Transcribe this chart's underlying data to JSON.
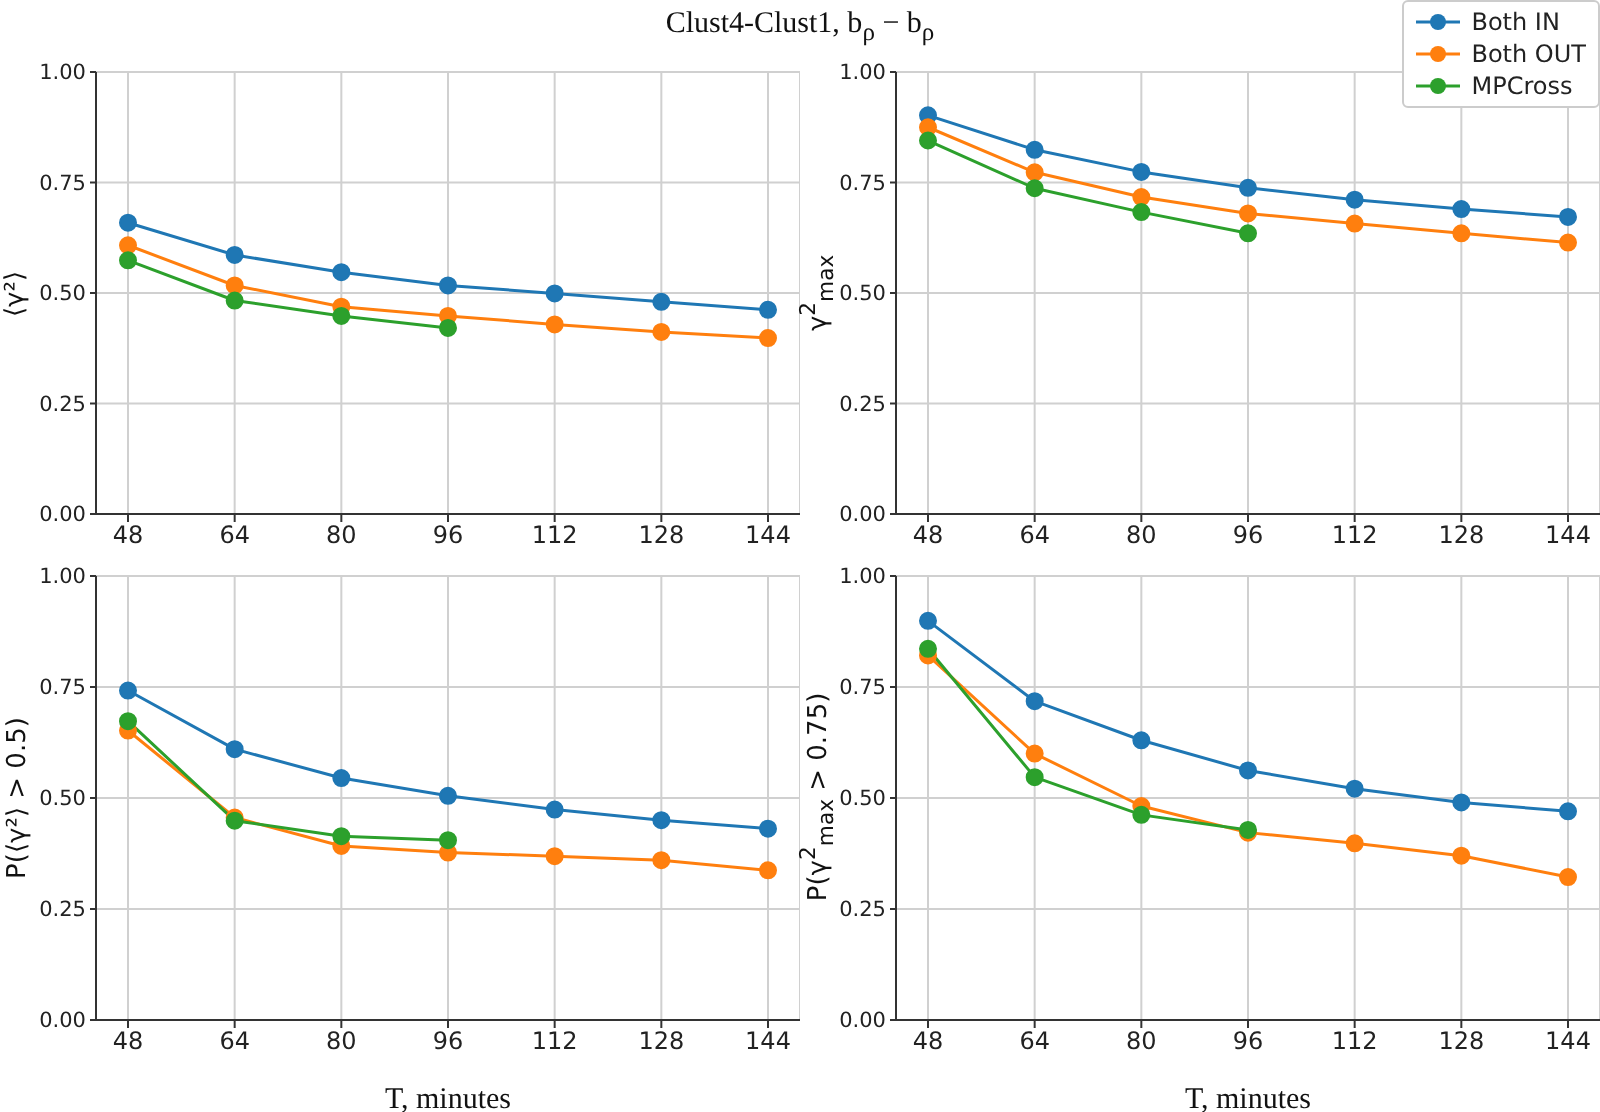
{
  "chart_data": [
    {
      "type": "line",
      "title": "Clust4-Clust1, b$_{ρ}$ − b$_{ρ}$",
      "ylabel": "⟨γ²⟩",
      "xlim": [
        43.2,
        148.8
      ],
      "xticks": [
        48,
        64,
        80,
        96,
        112,
        128,
        144
      ],
      "ylim": [
        0,
        1
      ],
      "yticks": [
        {
          "value": 0,
          "label": "0.00"
        },
        {
          "value": 0.25,
          "label": "0.25"
        },
        {
          "value": 0.5,
          "label": "0.50"
        },
        {
          "value": 0.75,
          "label": "0.75"
        },
        {
          "value": 1,
          "label": "1.00"
        }
      ],
      "grid": true,
      "marker": "circle",
      "line_style": "solid",
      "legend": false,
      "series": [
        {
          "color": "#1f77b4",
          "x": [
            48,
            64,
            80,
            96,
            112,
            128,
            144
          ],
          "values": [
            0.659,
            0.586,
            0.547,
            0.517,
            0.499,
            0.48,
            0.462
          ]
        },
        {
          "color": "#ff7f0e",
          "x": [
            48,
            64,
            80,
            96,
            112,
            128,
            144
          ],
          "values": [
            0.608,
            0.517,
            0.469,
            0.448,
            0.429,
            0.412,
            0.398
          ]
        },
        {
          "color": "#2ca02c",
          "x": [
            48,
            64,
            80,
            96
          ],
          "values": [
            0.574,
            0.483,
            0.448,
            0.421
          ]
        }
      ]
    },
    {
      "type": "line",
      "ylabel": "γ$^{2}$$_{max}$",
      "xlim": [
        43.2,
        148.8
      ],
      "xticks": [
        48,
        64,
        80,
        96,
        112,
        128,
        144
      ],
      "ylim": [
        0,
        1
      ],
      "yticks": [
        {
          "value": 0,
          "label": "0.00"
        },
        {
          "value": 0.25,
          "label": "0.25"
        },
        {
          "value": 0.5,
          "label": "0.50"
        },
        {
          "value": 0.75,
          "label": "0.75"
        },
        {
          "value": 1,
          "label": "1.00"
        }
      ],
      "grid": true,
      "marker": "circle",
      "line_style": "solid",
      "legend": "top right",
      "series": [
        {
          "name": "Both IN",
          "color": "#1f77b4",
          "x": [
            48,
            64,
            80,
            96,
            112,
            128,
            144
          ],
          "values": [
            0.902,
            0.824,
            0.774,
            0.738,
            0.711,
            0.69,
            0.672
          ]
        },
        {
          "name": "Both OUT",
          "color": "#ff7f0e",
          "x": [
            48,
            64,
            80,
            96,
            112,
            128,
            144
          ],
          "values": [
            0.875,
            0.773,
            0.717,
            0.68,
            0.657,
            0.635,
            0.614
          ]
        },
        {
          "name": "MPCross",
          "color": "#2ca02c",
          "x": [
            48,
            64,
            80,
            96
          ],
          "values": [
            0.845,
            0.737,
            0.683,
            0.635
          ]
        }
      ]
    },
    {
      "type": "line",
      "xlabel": "T, minutes",
      "ylabel": "P(⟨γ²⟩ > 0.5)",
      "xlim": [
        43.2,
        148.8
      ],
      "xticks": [
        48,
        64,
        80,
        96,
        112,
        128,
        144
      ],
      "ylim": [
        0,
        1
      ],
      "yticks": [
        {
          "value": 0,
          "label": "0.00"
        },
        {
          "value": 0.25,
          "label": "0.25"
        },
        {
          "value": 0.5,
          "label": "0.50"
        },
        {
          "value": 0.75,
          "label": "0.75"
        },
        {
          "value": 1,
          "label": "1.00"
        }
      ],
      "grid": true,
      "marker": "circle",
      "line_style": "solid",
      "legend": false,
      "series": [
        {
          "color": "#1f77b4",
          "x": [
            48,
            64,
            80,
            96,
            112,
            128,
            144
          ],
          "values": [
            0.742,
            0.61,
            0.545,
            0.505,
            0.474,
            0.45,
            0.431
          ]
        },
        {
          "color": "#ff7f0e",
          "x": [
            48,
            64,
            80,
            96,
            112,
            128,
            144
          ],
          "values": [
            0.652,
            0.456,
            0.392,
            0.377,
            0.369,
            0.36,
            0.337
          ]
        },
        {
          "color": "#2ca02c",
          "x": [
            48,
            64,
            80,
            96
          ],
          "values": [
            0.673,
            0.449,
            0.414,
            0.405
          ]
        }
      ]
    },
    {
      "type": "line",
      "xlabel": "T, minutes",
      "ylabel": "P(γ$^{2}$$_{max}$ > 0.75)",
      "xlim": [
        43.2,
        148.8
      ],
      "xticks": [
        48,
        64,
        80,
        96,
        112,
        128,
        144
      ],
      "ylim": [
        0,
        1
      ],
      "yticks": [
        {
          "value": 0,
          "label": "0.00"
        },
        {
          "value": 0.25,
          "label": "0.25"
        },
        {
          "value": 0.5,
          "label": "0.50"
        },
        {
          "value": 0.75,
          "label": "0.75"
        },
        {
          "value": 1,
          "label": "1.00"
        }
      ],
      "grid": true,
      "marker": "circle",
      "line_style": "solid",
      "legend": false,
      "series": [
        {
          "color": "#1f77b4",
          "x": [
            48,
            64,
            80,
            96,
            112,
            128,
            144
          ],
          "values": [
            0.899,
            0.718,
            0.63,
            0.562,
            0.521,
            0.49,
            0.47
          ]
        },
        {
          "color": "#ff7f0e",
          "x": [
            48,
            64,
            80,
            96,
            112,
            128,
            144
          ],
          "values": [
            0.821,
            0.6,
            0.482,
            0.422,
            0.398,
            0.37,
            0.322
          ]
        },
        {
          "color": "#2ca02c",
          "x": [
            48,
            64,
            80,
            96
          ],
          "values": [
            0.836,
            0.547,
            0.462,
            0.428
          ]
        }
      ]
    }
  ]
}
